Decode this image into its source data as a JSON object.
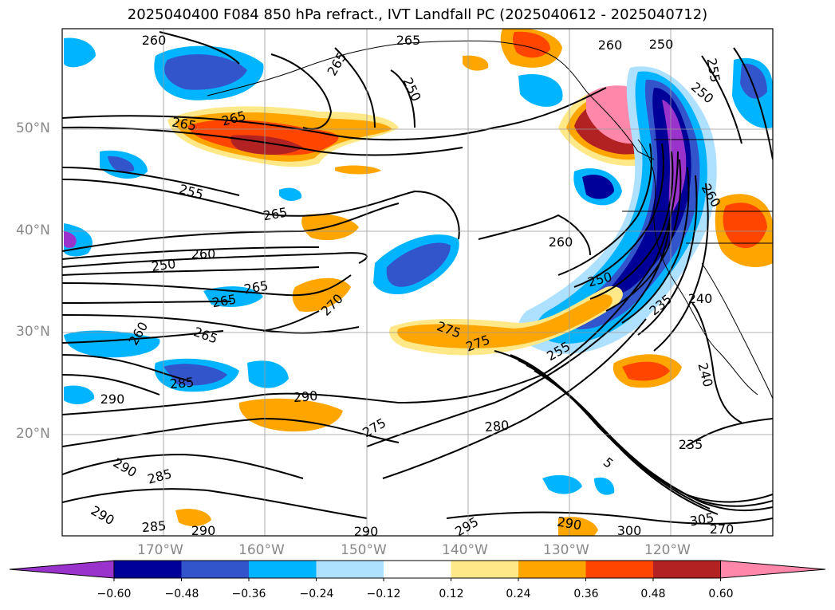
{
  "title": "2025040400 F084 850 hPa refract., IVT Landfall PC (2025040612 - 2025040712)",
  "lat_labels": [
    "50°N",
    "40°N",
    "30°N",
    "20°N"
  ],
  "lon_labels": [
    "170°W",
    "160°W",
    "150°W",
    "140°W",
    "130°W",
    "120°W"
  ],
  "colorbar": {
    "colors": [
      "#9933cc",
      "#000099",
      "#3355cc",
      "#00b4ff",
      "#aee0ff",
      "#ffffff",
      "#ffe888",
      "#ffa500",
      "#ff4500",
      "#b22222",
      "#ff88aa"
    ],
    "tick_labels": [
      "−0.60",
      "−0.48",
      "−0.36",
      "−0.24",
      "−0.12",
      "0.12",
      "0.24",
      "0.36",
      "0.48",
      "0.60"
    ],
    "extend": "both"
  },
  "contour_labels": [
    "260",
    "265",
    "260",
    "250",
    "265",
    "250",
    "255",
    "250",
    "265",
    "265",
    "255",
    "265",
    "260",
    "250",
    "250",
    "260",
    "265",
    "265",
    "260",
    "265",
    "270",
    "275",
    "275",
    "235",
    "240",
    "255",
    "260",
    "240",
    "285",
    "290",
    "290",
    "275",
    "280",
    "235",
    "290",
    "285",
    "290",
    "285",
    "290",
    "290",
    "295",
    "290",
    "300",
    "305",
    "270",
    "5"
  ]
}
